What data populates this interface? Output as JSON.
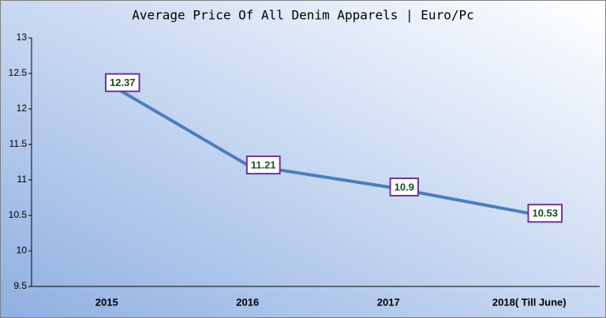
{
  "chart_data": {
    "type": "line",
    "title": "Average Price Of All Denim Apparels | Euro/Pc",
    "categories": [
      "2015",
      "2016",
      "2017",
      "2018( Till June)"
    ],
    "values": [
      12.37,
      11.21,
      10.9,
      10.53
    ],
    "color": "#4a7ebb",
    "ylim": [
      9.5,
      13
    ],
    "yticks": [
      9.5,
      10,
      10.5,
      11,
      11.5,
      12,
      12.5,
      13
    ],
    "grid": false,
    "data_labels": true
  }
}
